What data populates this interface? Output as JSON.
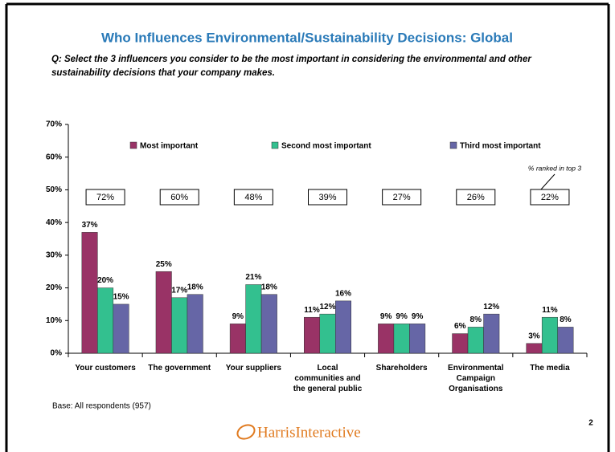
{
  "chart_data": {
    "type": "bar",
    "title": "Who Influences Environmental/Sustainability Decisions: Global",
    "subtitle": "Q: Select the 3 influencers you consider to be the most important in considering the environmental and other sustainability decisions that your company makes.",
    "categories": [
      "Your customers",
      "The government",
      "Your suppliers",
      "Local communities and the general public",
      "Shareholders",
      "Environmental Campaign Organisations",
      "The media"
    ],
    "series": [
      {
        "name": "Most important",
        "color": "#993366",
        "values": [
          37,
          25,
          9,
          11,
          9,
          6,
          3
        ],
        "value_labels": [
          "37%",
          "25%",
          "9%",
          "11%",
          "9%",
          "6%",
          "3%"
        ]
      },
      {
        "name": "Second most important",
        "color": "#33c08f",
        "values": [
          20,
          17,
          21,
          12,
          9,
          8,
          11
        ],
        "value_labels": [
          "20%",
          "17%",
          "21%",
          "12%",
          "9%",
          "8%",
          "11%"
        ]
      },
      {
        "name": "Third most important",
        "color": "#6666a6",
        "values": [
          15,
          18,
          18,
          16,
          9,
          12,
          8
        ],
        "value_labels": [
          "15%",
          "18%",
          "18%",
          "16%",
          "9%",
          "12%",
          "8%"
        ]
      }
    ],
    "top3": {
      "label": "% ranked in top 3",
      "values": [
        72,
        60,
        48,
        39,
        27,
        26,
        22
      ],
      "value_labels": [
        "72%",
        "60%",
        "48%",
        "39%",
        "27%",
        "26%",
        "22%"
      ]
    },
    "ylim": [
      0,
      70
    ],
    "yticks": [
      {
        "value": 0,
        "label": "0%"
      },
      {
        "value": 10,
        "label": "10%"
      },
      {
        "value": 20,
        "label": "20%"
      },
      {
        "value": 30,
        "label": "30%"
      },
      {
        "value": 40,
        "label": "40%"
      },
      {
        "value": 50,
        "label": "50%"
      },
      {
        "value": 60,
        "label": "60%"
      },
      {
        "value": 70,
        "label": "70%"
      }
    ],
    "legend": "top",
    "note": "Base: All respondents (957)",
    "logo": "HarrisInteractive",
    "page_number": "2"
  }
}
